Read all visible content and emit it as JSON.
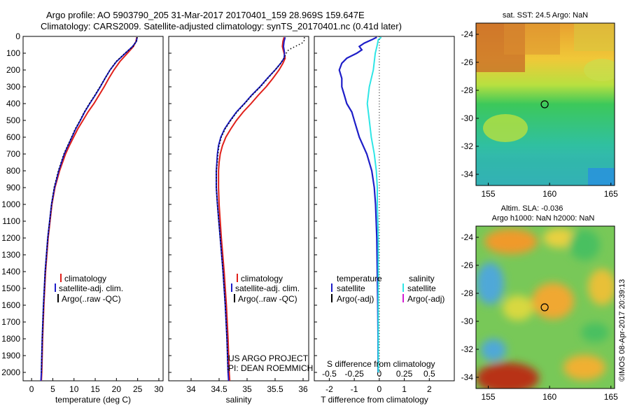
{
  "header": {
    "line1": "Argo profile: AO 5903790_205 31-Mar-2017 20170401_159 28.969S 159.647E",
    "line2": "Climatology: CARS2009. Satellite-adjusted climatology: synTS_20170401.nc (0.41d later)"
  },
  "credits": {
    "project": "US ARGO PROJECT",
    "pi": "PI: DEAN ROEMMICH",
    "imos": "©IMOS 08-Apr-2017 20:39:13"
  },
  "colors": {
    "climatology": "#e0201a",
    "satellite": "#1e1ec8",
    "argo": "#000000",
    "salinity_satellite": "#2ee6e6",
    "salinity_argo": "#d21ed2"
  },
  "chart_data": [
    {
      "type": "line",
      "xlabel": "temperature (deg C)",
      "ylabel": "",
      "xlim": [
        -2,
        31
      ],
      "ylim": [
        2050,
        0
      ],
      "xticks": [
        0,
        5,
        10,
        15,
        20,
        25,
        30
      ],
      "yticks": [
        0,
        100,
        200,
        300,
        400,
        500,
        600,
        700,
        800,
        900,
        1000,
        1100,
        1200,
        1300,
        1400,
        1500,
        1600,
        1700,
        1800,
        1900,
        2000
      ],
      "legend": {
        "position": "lower-middle",
        "entries": [
          "climatology",
          "satellite-adj. clim.",
          "Argo(..raw -QC)"
        ]
      },
      "series": [
        {
          "name": "climatology",
          "style": "solid",
          "depth": [
            5,
            30,
            60,
            100,
            150,
            200,
            250,
            300,
            350,
            400,
            450,
            500,
            550,
            600,
            650,
            700,
            800,
            900,
            1000,
            1200,
            1400,
            1600,
            1800,
            2000,
            2050
          ],
          "values": [
            24.8,
            24.6,
            24.0,
            22.6,
            20.8,
            19.4,
            18.2,
            17.1,
            15.9,
            14.7,
            13.3,
            12.1,
            10.9,
            9.9,
            8.9,
            8.0,
            6.6,
            5.5,
            4.8,
            3.9,
            3.3,
            2.9,
            2.6,
            2.4,
            2.3
          ]
        },
        {
          "name": "satellite-adj. clim.",
          "style": "solid",
          "depth": [
            5,
            30,
            60,
            100,
            150,
            200,
            250,
            300,
            350,
            400,
            450,
            500,
            550,
            600,
            650,
            700,
            800,
            900,
            1000,
            1200,
            1400,
            1600,
            1800,
            2000,
            2050
          ],
          "values": [
            24.9,
            24.7,
            23.8,
            22.1,
            20.0,
            18.5,
            17.3,
            16.2,
            15.0,
            13.7,
            12.5,
            11.5,
            10.4,
            9.5,
            8.6,
            7.7,
            6.4,
            5.4,
            4.7,
            3.8,
            3.2,
            2.8,
            2.5,
            2.3,
            2.2
          ]
        },
        {
          "name": "Argo(..raw -QC)",
          "style": "dotted",
          "depth": [
            5,
            30,
            60,
            100,
            150,
            200,
            250,
            300,
            350,
            400,
            450,
            500,
            550,
            600,
            650,
            700,
            800,
            900,
            1000,
            1200,
            1400,
            1600,
            1800,
            2000
          ],
          "values": [
            24.9,
            24.7,
            23.9,
            22.0,
            19.9,
            18.5,
            17.3,
            16.1,
            14.9,
            13.6,
            12.4,
            11.4,
            10.3,
            9.4,
            8.5,
            7.6,
            6.3,
            5.3,
            4.7,
            3.8,
            3.2,
            2.8,
            2.5,
            2.3
          ]
        }
      ]
    },
    {
      "type": "line",
      "xlabel": "salinity",
      "ylabel": "",
      "xlim": [
        33.6,
        36.1
      ],
      "ylim": [
        2050,
        0
      ],
      "xticks": [
        34,
        34.5,
        35,
        35.5,
        36
      ],
      "legend": {
        "position": "lower-middle",
        "entries": [
          "climatology",
          "satellite-adj. clim.",
          "Argo(..raw -QC)"
        ]
      },
      "series": [
        {
          "name": "climatology",
          "style": "solid",
          "depth": [
            5,
            30,
            60,
            100,
            130,
            160,
            200,
            250,
            300,
            350,
            400,
            450,
            500,
            550,
            600,
            650,
            700,
            750,
            800,
            900,
            1000,
            1200,
            1400,
            1600,
            1800,
            2000,
            2050
          ],
          "values": [
            35.66,
            35.64,
            35.63,
            35.66,
            35.68,
            35.64,
            35.57,
            35.46,
            35.34,
            35.2,
            35.07,
            34.93,
            34.81,
            34.71,
            34.62,
            34.56,
            34.52,
            34.5,
            34.49,
            34.49,
            34.5,
            34.54,
            34.59,
            34.63,
            34.66,
            34.68,
            34.69
          ]
        },
        {
          "name": "satellite-adj. clim.",
          "style": "solid",
          "depth": [
            5,
            30,
            60,
            100,
            130,
            160,
            200,
            250,
            300,
            350,
            400,
            450,
            500,
            550,
            600,
            650,
            700,
            750,
            800,
            900,
            1000,
            1200,
            1400,
            1600,
            1800,
            2000,
            2050
          ],
          "values": [
            35.68,
            35.66,
            35.65,
            35.67,
            35.66,
            35.6,
            35.5,
            35.36,
            35.23,
            35.08,
            34.95,
            34.81,
            34.7,
            34.6,
            34.53,
            34.49,
            34.47,
            34.46,
            34.45,
            34.45,
            34.47,
            34.52,
            34.57,
            34.61,
            34.64,
            34.66,
            34.67
          ]
        },
        {
          "name": "Argo(..raw -QC)",
          "style": "dotted",
          "depth": [
            5,
            20,
            40,
            60,
            80,
            100,
            130,
            160,
            200,
            250,
            300,
            350,
            400,
            450,
            500,
            550,
            600,
            650,
            700,
            750,
            800,
            900,
            1000,
            1200,
            1400,
            1600,
            1800,
            2000
          ],
          "values": [
            36.02,
            36.03,
            35.98,
            35.86,
            35.74,
            35.7,
            35.66,
            35.6,
            35.5,
            35.37,
            35.24,
            35.09,
            34.96,
            34.82,
            34.71,
            34.61,
            34.54,
            34.5,
            34.48,
            34.47,
            34.45,
            34.45,
            34.47,
            34.52,
            34.57,
            34.61,
            34.64,
            34.66
          ]
        }
      ]
    },
    {
      "type": "line",
      "xlabel": "T difference from climatology",
      "x2label": "S difference from climatology",
      "ylabel": "",
      "xlim": [
        -2.6,
        3.0
      ],
      "x2lim": [
        -0.65,
        0.75
      ],
      "ylim": [
        2050,
        0
      ],
      "xticks": [
        -2,
        -1,
        0,
        1,
        2
      ],
      "x2ticks": [
        -0.5,
        -0.25,
        0,
        0.25,
        0.5
      ],
      "x2ticklabels": [
        "-0.5",
        "-0.25",
        "0",
        "0.25",
        "0.5"
      ],
      "legend": {
        "position": "lower-middle",
        "temperature_title": "temperature",
        "salinity_title": "salinity",
        "entries": [
          "satellite",
          "Argo(-adj)",
          "satellite",
          "Argo(-adj)"
        ]
      },
      "series": [
        {
          "name": "temperature satellite",
          "axis": "T",
          "depth": [
            5,
            20,
            40,
            60,
            80,
            100,
            130,
            160,
            200,
            250,
            300,
            350,
            400,
            450,
            500,
            550,
            600,
            700,
            800,
            900,
            1000,
            1200,
            1400,
            1600,
            1800,
            2000
          ],
          "values": [
            -0.1,
            -0.3,
            -0.6,
            -0.8,
            -0.7,
            -0.9,
            -1.3,
            -1.5,
            -1.6,
            -1.5,
            -1.5,
            -1.4,
            -1.3,
            -1.1,
            -1.0,
            -0.9,
            -0.8,
            -0.5,
            -0.3,
            -0.2,
            -0.15,
            -0.1,
            -0.08,
            -0.06,
            -0.05,
            -0.05
          ]
        },
        {
          "name": "salinity satellite",
          "axis": "S",
          "depth": [
            5,
            20,
            50,
            100,
            150,
            200,
            300,
            400,
            500,
            600,
            700,
            800,
            900,
            1000,
            1200,
            1400,
            1600,
            1800,
            2000
          ],
          "values": [
            0.02,
            -0.01,
            -0.02,
            -0.04,
            -0.05,
            -0.06,
            -0.1,
            -0.12,
            -0.1,
            -0.08,
            -0.05,
            -0.03,
            -0.02,
            -0.02,
            -0.01,
            -0.01,
            -0.01,
            -0.01,
            -0.01
          ]
        },
        {
          "name": "Argo(-adj) reference",
          "axis": "T",
          "style": "dotted",
          "depth": [
            0,
            2050
          ],
          "values": [
            0,
            0
          ]
        }
      ]
    }
  ],
  "maps": [
    {
      "title": "sat. SST: 24.5 Argo: NaN",
      "title2": "",
      "xticks": [
        "155",
        "160",
        "165"
      ],
      "yticks": [
        "-24",
        "-26",
        "-28",
        "-30",
        "-32",
        "-34"
      ],
      "marker_lon": 159.6,
      "marker_lat": -29.0
    },
    {
      "title": "Altim. SLA: -0.036",
      "title2": "Argo h1000: NaN h2000: NaN",
      "xticks": [
        "155",
        "160",
        "165"
      ],
      "yticks": [
        "-24",
        "-26",
        "-28",
        "-30",
        "-32",
        "-34"
      ],
      "marker_lon": 159.6,
      "marker_lat": -29.0
    }
  ]
}
